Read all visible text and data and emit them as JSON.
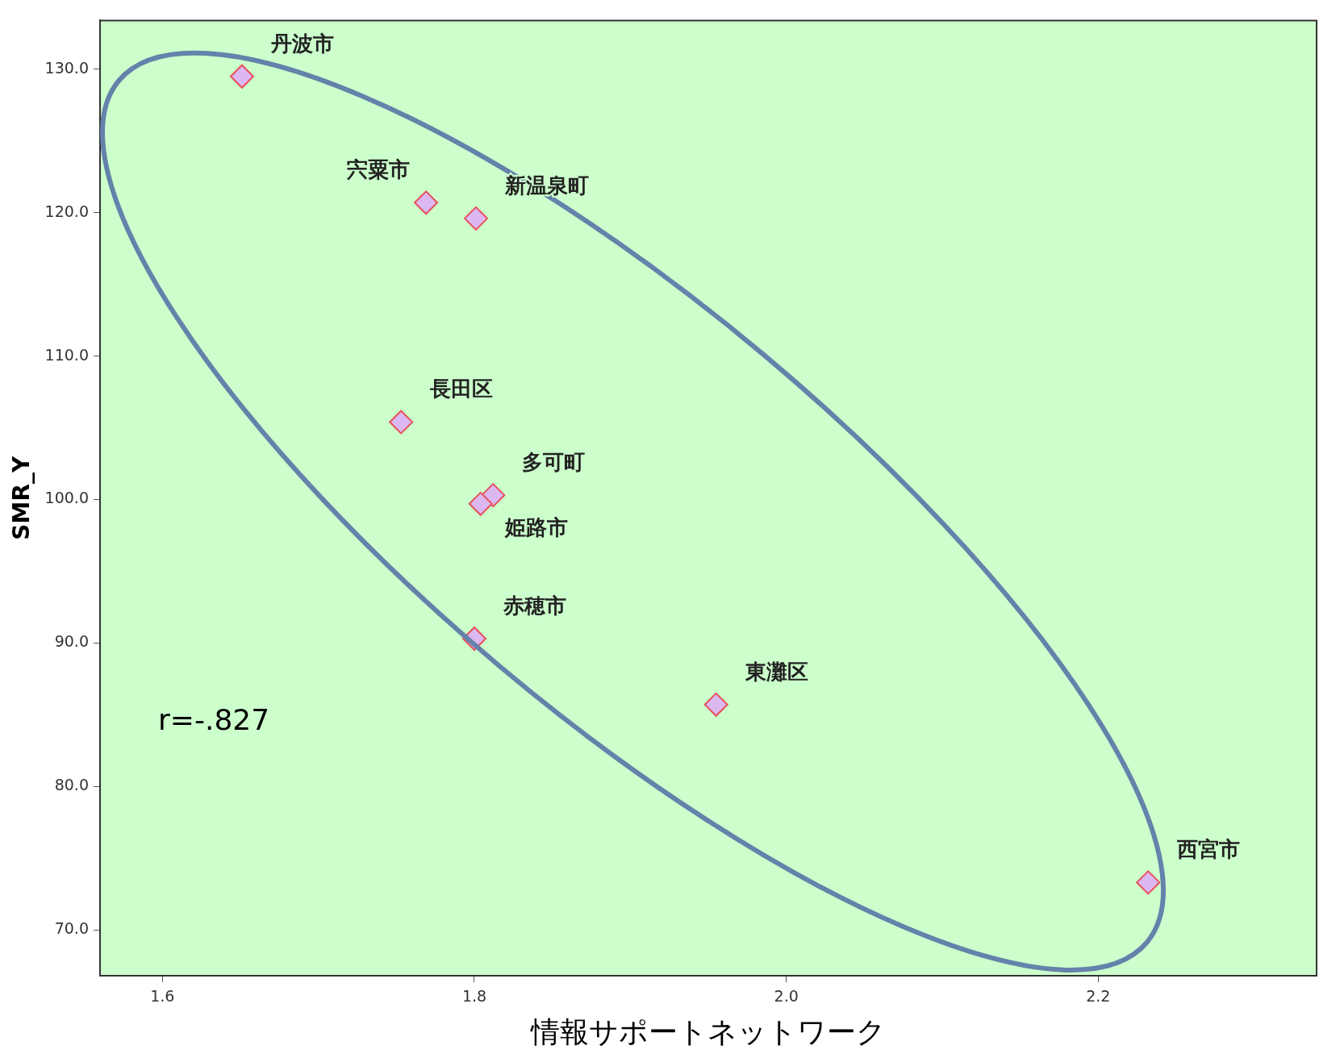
{
  "chart_data": {
    "type": "scatter",
    "xlabel": "情報サポートネットワーク",
    "ylabel": "SMR_Y",
    "xlim": [
      1.56,
      2.34
    ],
    "xticks": [
      {
        "value": 1.6,
        "label": "1.6"
      },
      {
        "value": 1.8,
        "label": "1.8"
      },
      {
        "value": 2.0,
        "label": "2.0"
      },
      {
        "value": 2.2,
        "label": "2.2"
      }
    ],
    "ylim": [
      66.8,
      133.4
    ],
    "yticks": [
      {
        "value": 70,
        "label": "70.0"
      },
      {
        "value": 80,
        "label": "80.0"
      },
      {
        "value": 90,
        "label": "90.0"
      },
      {
        "value": 100,
        "label": "100.0"
      },
      {
        "value": 110,
        "label": "110.0"
      },
      {
        "value": 120,
        "label": "120.0"
      },
      {
        "value": 130,
        "label": "130.0"
      }
    ],
    "grid": false,
    "legend": false,
    "marker": "diamond",
    "series": [
      {
        "color": "#dcb8f0",
        "x": [
          1.651,
          1.769,
          1.801,
          1.753,
          1.812,
          1.804,
          1.8,
          1.955,
          2.232
        ],
        "values": [
          129.5,
          120.7,
          119.6,
          105.4,
          100.3,
          99.7,
          90.3,
          85.7,
          73.3
        ]
      }
    ],
    "annotations": [
      {
        "text": "丹波市",
        "x": 1.651,
        "y": 129.5
      },
      {
        "text": "宍粟市",
        "x": 1.769,
        "y": 120.7
      },
      {
        "text": "新温泉町",
        "x": 1.801,
        "y": 119.6
      },
      {
        "text": "長田区",
        "x": 1.753,
        "y": 105.4
      },
      {
        "text": "多可町",
        "x": 1.812,
        "y": 100.3
      },
      {
        "text": "姫路市",
        "x": 1.804,
        "y": 99.7
      },
      {
        "text": "赤穂市",
        "x": 1.8,
        "y": 90.3
      },
      {
        "text": "東灘区",
        "x": 1.955,
        "y": 85.7
      },
      {
        "text": "西宮市",
        "x": 2.232,
        "y": 73.3
      },
      "r=-.827"
    ]
  }
}
